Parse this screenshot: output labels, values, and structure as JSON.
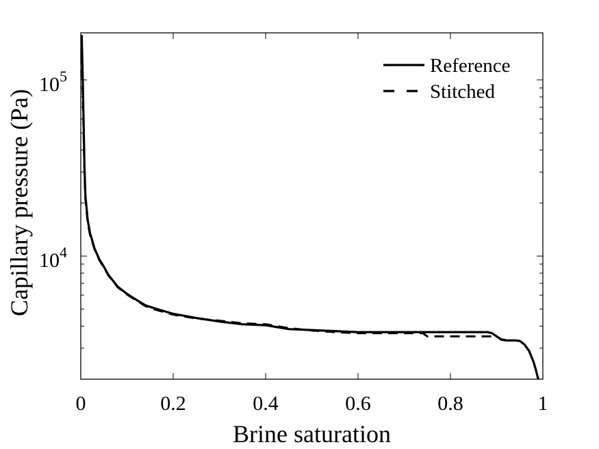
{
  "chart_data": {
    "type": "line",
    "xlabel": "Brine saturation",
    "ylabel": "Capillary pressure (Pa)",
    "xlim": [
      0,
      1
    ],
    "ylim": [
      2000,
      185000
    ],
    "yscale": "log",
    "grid": false,
    "legend_position": "top-right",
    "x_ticks": [
      {
        "value": 0,
        "label": "0"
      },
      {
        "value": 0.2,
        "label": "0.2"
      },
      {
        "value": 0.4,
        "label": "0.4"
      },
      {
        "value": 0.6,
        "label": "0.6"
      },
      {
        "value": 0.8,
        "label": "0.8"
      },
      {
        "value": 1,
        "label": "1"
      }
    ],
    "y_ticks": [
      {
        "value": 10000,
        "base": "10",
        "exp": "4"
      },
      {
        "value": 100000,
        "base": "10",
        "exp": "5"
      }
    ],
    "series": [
      {
        "name": "Reference",
        "style": "solid",
        "color": "#000000",
        "x": [
          0.002,
          0.004,
          0.006,
          0.008,
          0.01,
          0.015,
          0.02,
          0.03,
          0.04,
          0.05,
          0.06,
          0.08,
          0.1,
          0.12,
          0.14,
          0.16,
          0.2,
          0.25,
          0.3,
          0.35,
          0.4,
          0.45,
          0.5,
          0.55,
          0.6,
          0.7,
          0.8,
          0.88,
          0.89,
          0.9,
          0.91,
          0.92,
          0.94,
          0.95,
          0.96,
          0.97,
          0.98,
          0.985,
          0.99
        ],
        "y": [
          180000,
          110000,
          60000,
          32000,
          22000,
          16000,
          13500,
          11000,
          9600,
          8700,
          7800,
          6700,
          6100,
          5650,
          5250,
          5050,
          4700,
          4450,
          4250,
          4100,
          4050,
          3850,
          3800,
          3750,
          3700,
          3700,
          3700,
          3700,
          3650,
          3500,
          3350,
          3320,
          3320,
          3300,
          3150,
          2900,
          2500,
          2250,
          2000
        ]
      },
      {
        "name": "Stitched",
        "style": "dashed",
        "color": "#000000",
        "x": [
          0.002,
          0.004,
          0.006,
          0.008,
          0.01,
          0.015,
          0.02,
          0.03,
          0.04,
          0.05,
          0.06,
          0.08,
          0.1,
          0.12,
          0.14,
          0.16,
          0.2,
          0.25,
          0.3,
          0.35,
          0.4,
          0.45,
          0.5,
          0.55,
          0.6,
          0.7,
          0.74,
          0.75,
          0.8,
          0.9,
          0.91,
          0.92,
          0.94,
          0.95,
          0.96,
          0.97,
          0.98,
          0.985,
          0.99
        ],
        "y": [
          140000,
          90000,
          52000,
          30000,
          21000,
          15500,
          13200,
          10900,
          9500,
          8600,
          7750,
          6650,
          6050,
          5600,
          5200,
          4980,
          4650,
          4420,
          4300,
          4150,
          4100,
          3900,
          3780,
          3700,
          3650,
          3650,
          3650,
          3500,
          3500,
          3500,
          3370,
          3330,
          3320,
          3300,
          3150,
          2900,
          2500,
          2250,
          2000
        ]
      }
    ]
  }
}
